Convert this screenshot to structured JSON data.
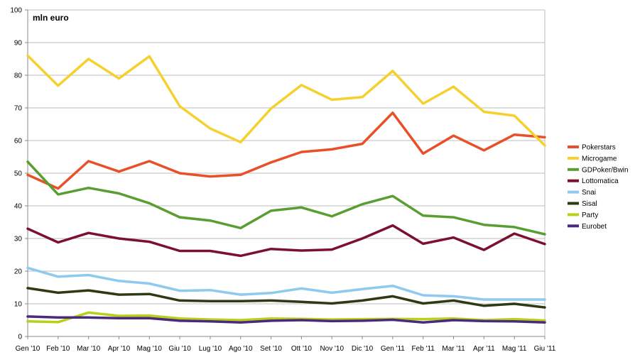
{
  "chart_data": {
    "type": "line",
    "unit_label": "mln euro",
    "title": "",
    "xlabel": "",
    "ylabel": "",
    "ylim": [
      0,
      100
    ],
    "yticks": [
      0,
      10,
      20,
      30,
      40,
      50,
      60,
      70,
      80,
      90,
      100
    ],
    "grid": true,
    "legend_position": "right",
    "categories": [
      "Gen '10",
      "Feb '10",
      "Mar '10",
      "Apr '10",
      "Mag '10",
      "Giu '10",
      "Lug '10",
      "Ago '10",
      "Set '10",
      "Ott '10",
      "Nov '10",
      "Dic '10",
      "Gen '11",
      "Feb '11",
      "Mar '11",
      "Apr '11",
      "Mag '11",
      "Giu '11"
    ],
    "series": [
      {
        "name": "Pokerstars",
        "color": "#e8502a",
        "values": [
          49.5,
          45.3,
          53.7,
          50.5,
          53.7,
          50.0,
          49.0,
          49.5,
          53.3,
          56.5,
          57.3,
          59.0,
          68.5,
          56.0,
          61.5,
          57.0,
          61.8,
          61.0
        ]
      },
      {
        "name": "Microgame",
        "color": "#f5d130",
        "values": [
          86.0,
          76.8,
          85.0,
          79.0,
          85.8,
          70.5,
          63.7,
          59.5,
          69.8,
          77.0,
          72.5,
          73.3,
          81.3,
          71.3,
          76.5,
          68.8,
          67.6,
          58.5
        ]
      },
      {
        "name": "GDPoker/Bwin",
        "color": "#5a9e32",
        "values": [
          53.5,
          43.5,
          45.5,
          43.8,
          40.8,
          36.5,
          35.5,
          33.2,
          38.5,
          39.5,
          36.8,
          40.5,
          43.0,
          37.0,
          36.5,
          34.2,
          33.5,
          31.3
        ]
      },
      {
        "name": "Lottomatica",
        "color": "#7b1030",
        "values": [
          33.0,
          28.8,
          31.7,
          30.0,
          29.0,
          26.2,
          26.2,
          24.7,
          26.8,
          26.3,
          26.6,
          30.0,
          34.0,
          28.4,
          30.3,
          26.5,
          31.5,
          28.3
        ]
      },
      {
        "name": "Snai",
        "color": "#8ec9ef",
        "values": [
          21.0,
          18.3,
          18.8,
          17.0,
          16.2,
          14.0,
          14.2,
          12.8,
          13.3,
          14.7,
          13.4,
          14.5,
          15.5,
          12.6,
          12.3,
          11.3,
          11.3,
          11.3
        ]
      },
      {
        "name": "Sisal",
        "color": "#2d3a14",
        "values": [
          14.8,
          13.4,
          14.1,
          12.8,
          13.0,
          11.0,
          10.8,
          10.8,
          11.0,
          10.6,
          10.1,
          11.0,
          12.3,
          10.1,
          11.0,
          9.4,
          10.0,
          8.9
        ]
      },
      {
        "name": "Party",
        "color": "#b8d118",
        "values": [
          4.6,
          4.4,
          7.3,
          6.3,
          6.4,
          5.5,
          5.2,
          5.0,
          5.5,
          5.4,
          5.2,
          5.3,
          5.4,
          5.3,
          5.5,
          5.0,
          5.3,
          4.9
        ]
      },
      {
        "name": "Eurobet",
        "color": "#4a2a7e",
        "values": [
          6.1,
          5.8,
          5.8,
          5.6,
          5.6,
          4.8,
          4.6,
          4.3,
          4.8,
          5.0,
          4.7,
          4.8,
          5.1,
          4.3,
          5.0,
          4.7,
          4.6,
          4.3
        ]
      }
    ]
  }
}
